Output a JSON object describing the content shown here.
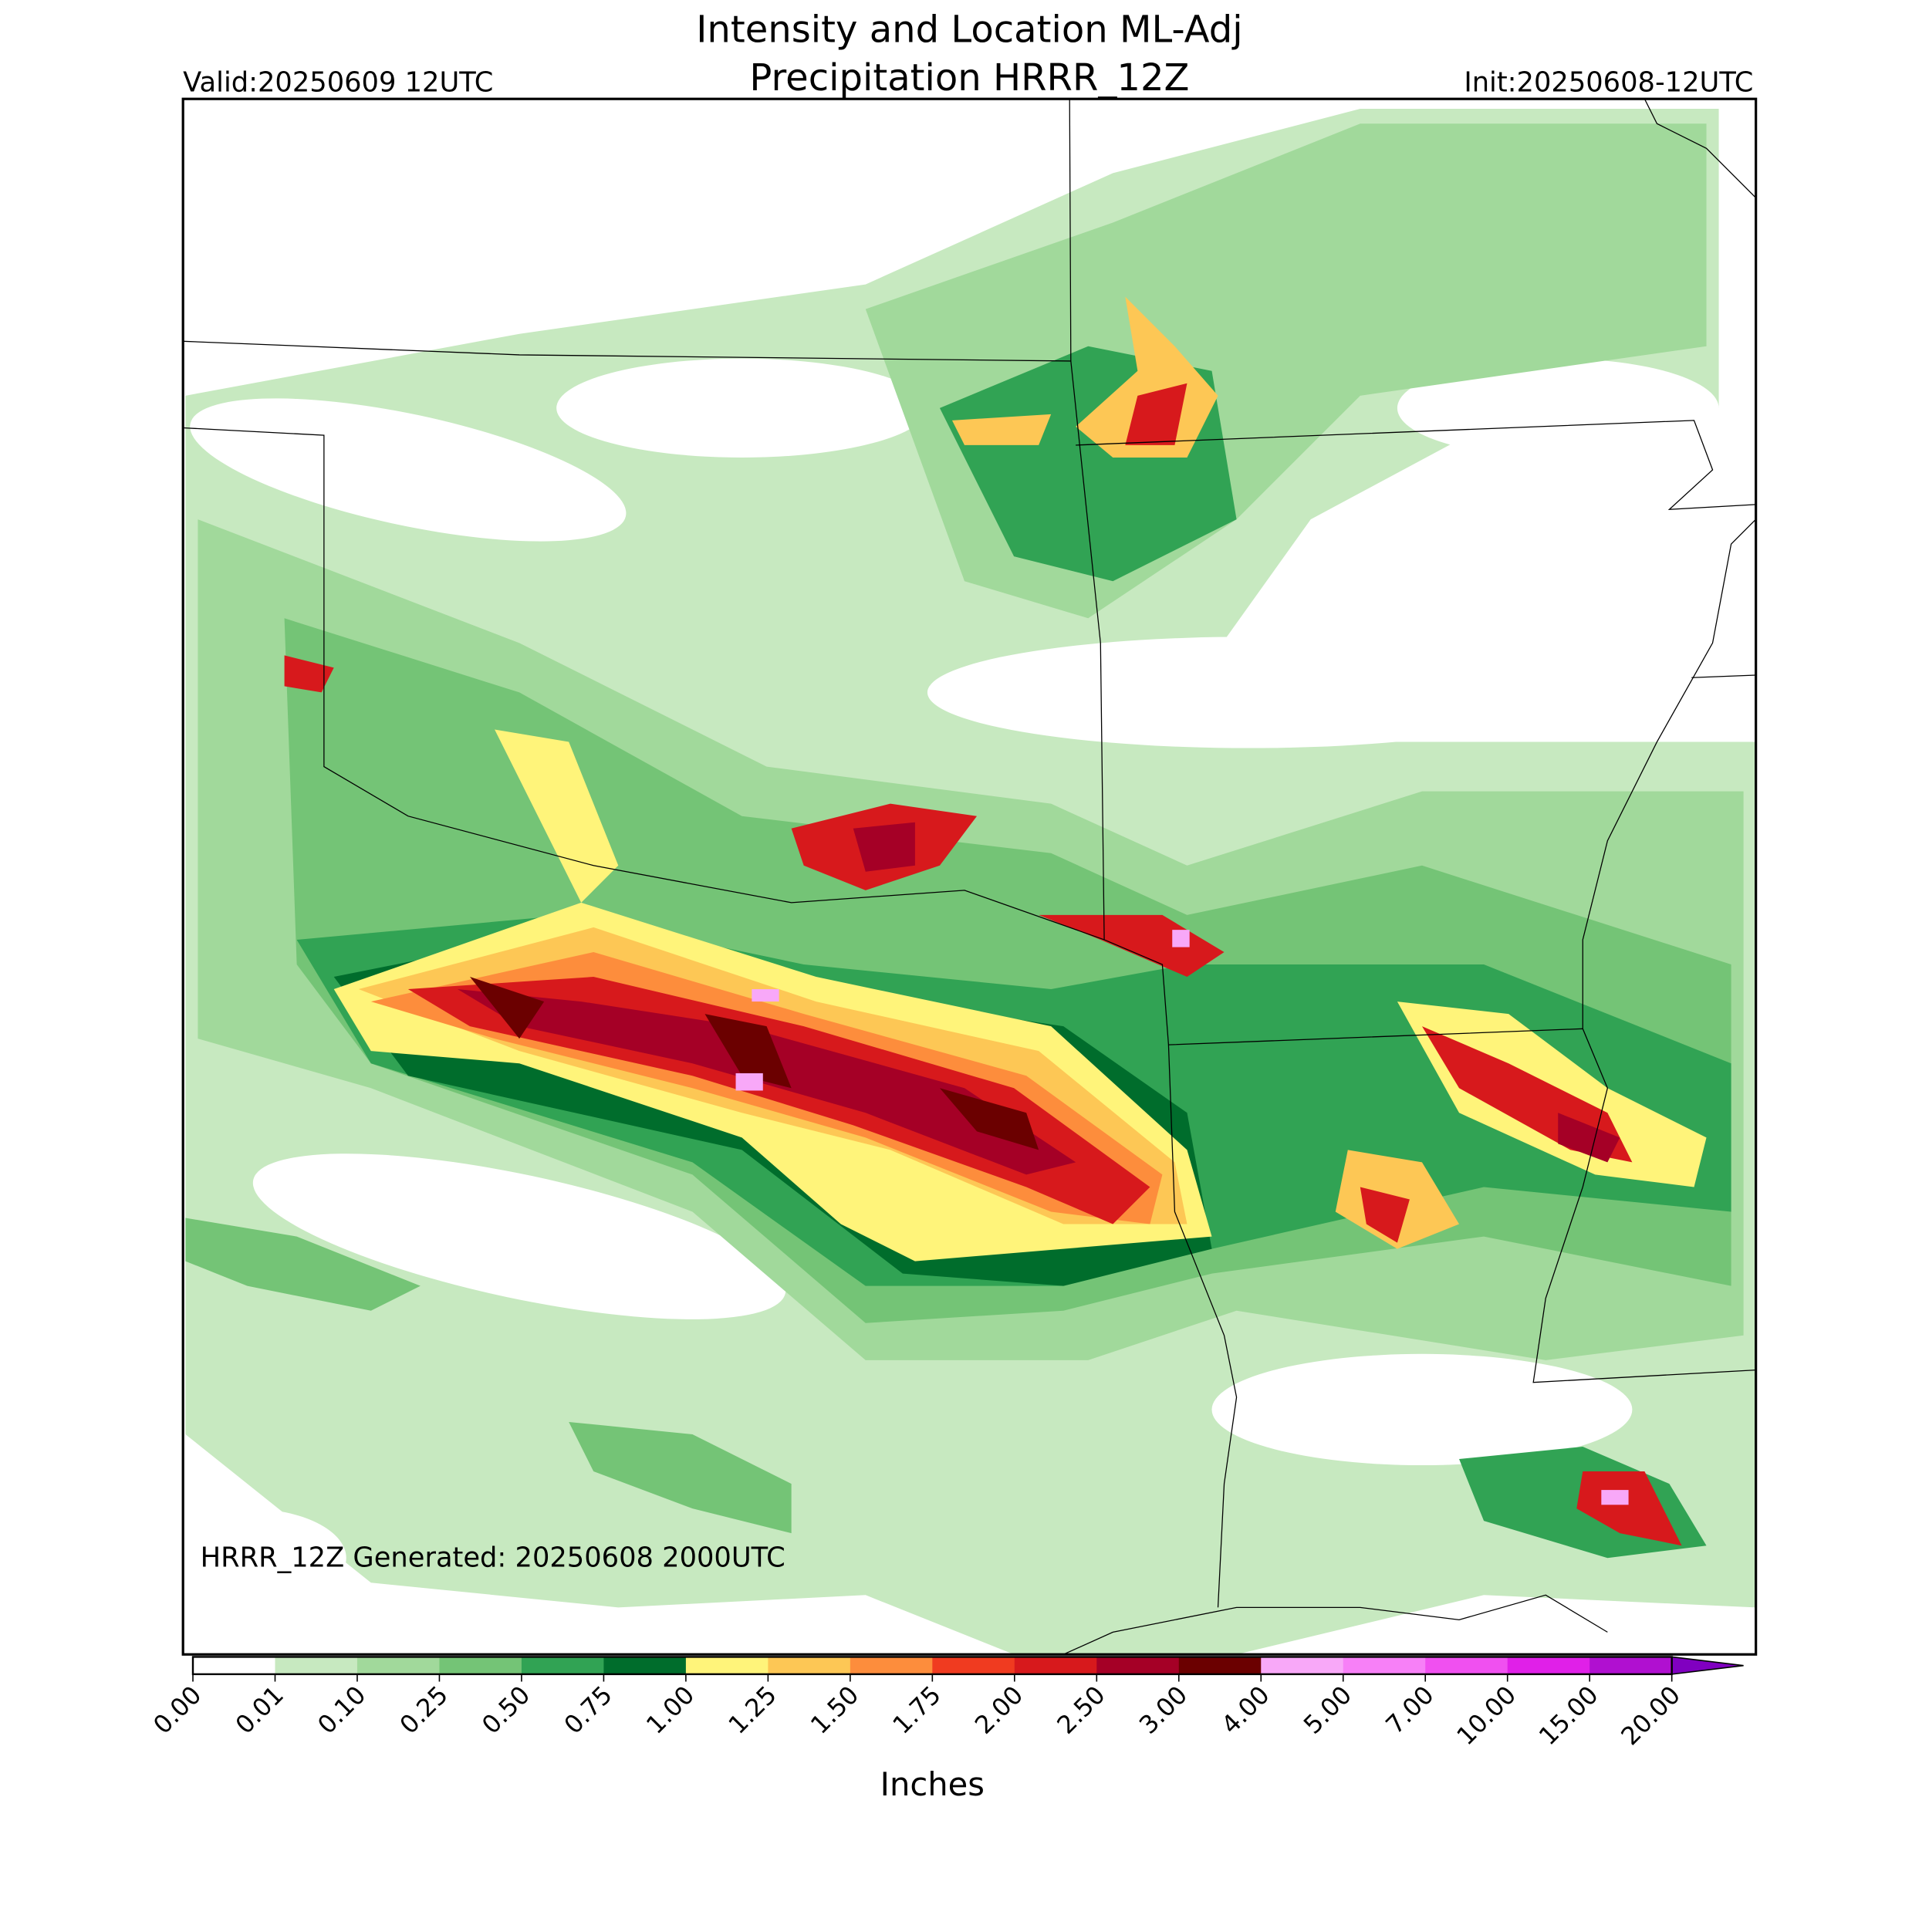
{
  "header": {
    "title_line1": "Intensity and Location ML-Adj",
    "title_line2": "Precipitation HRRR_12Z",
    "valid": "Valid:20250609 12UTC",
    "init": "Init:20250608-12UTC"
  },
  "map": {
    "note": "HRRR_12Z Generated: 20250608 2000UTC"
  },
  "colorbar": {
    "label": "Inches",
    "ticks": [
      {
        "value": 0,
        "label": "0.00"
      },
      {
        "value": 0.01,
        "label": "0.01"
      },
      {
        "value": 0.1,
        "label": "0.10"
      },
      {
        "value": 0.25,
        "label": "0.25"
      },
      {
        "value": 0.5,
        "label": "0.50"
      },
      {
        "value": 0.75,
        "label": "0.75"
      },
      {
        "value": 1,
        "label": "1.00"
      },
      {
        "value": 1.25,
        "label": "1.25"
      },
      {
        "value": 1.5,
        "label": "1.50"
      },
      {
        "value": 1.75,
        "label": "1.75"
      },
      {
        "value": 2,
        "label": "2.00"
      },
      {
        "value": 2.5,
        "label": "2.50"
      },
      {
        "value": 3,
        "label": "3.00"
      },
      {
        "value": 4,
        "label": "4.00"
      },
      {
        "value": 5,
        "label": "5.00"
      },
      {
        "value": 7,
        "label": "7.00"
      },
      {
        "value": 10,
        "label": "10.00"
      },
      {
        "value": 15,
        "label": "15.00"
      },
      {
        "value": 20,
        "label": "20.00"
      }
    ],
    "colors": [
      "#ffffff",
      "#c7e9c0",
      "#a1d99b",
      "#74c476",
      "#31a354",
      "#006d2c",
      "#fff47a",
      "#fdc755",
      "#fd8d3c",
      "#f03b20",
      "#d7191c",
      "#a50026",
      "#6b0000",
      "#f8a8f8",
      "#f780f7",
      "#f050f0",
      "#e020e8",
      "#b010d0"
    ],
    "extend_color": "#8000c0"
  }
}
